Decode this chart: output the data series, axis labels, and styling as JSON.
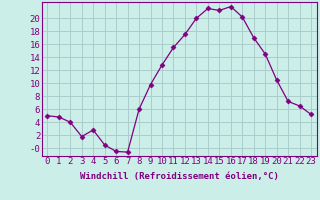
{
  "x": [
    0,
    1,
    2,
    3,
    4,
    5,
    6,
    7,
    8,
    9,
    10,
    11,
    12,
    13,
    14,
    15,
    16,
    17,
    18,
    19,
    20,
    21,
    22,
    23
  ],
  "y": [
    5.0,
    4.8,
    4.0,
    1.8,
    2.8,
    0.5,
    -0.5,
    -0.6,
    6.0,
    9.8,
    12.8,
    15.5,
    17.5,
    20.0,
    21.5,
    21.2,
    21.8,
    20.2,
    17.0,
    14.5,
    10.5,
    7.2,
    6.5,
    5.2
  ],
  "line_color": "#800080",
  "marker": "D",
  "marker_size": 2.5,
  "bg_color": "#cceee8",
  "grid_color": "#aacccc",
  "xlabel": "Windchill (Refroidissement éolien,°C)",
  "ylabel": "",
  "yticks": [
    0,
    2,
    4,
    6,
    8,
    10,
    12,
    14,
    16,
    18,
    20
  ],
  "ytick_labels": [
    "-0",
    "2",
    "4",
    "6",
    "8",
    "10",
    "12",
    "14",
    "16",
    "18",
    "20"
  ],
  "ylim": [
    -1.2,
    22.5
  ],
  "xlim": [
    -0.5,
    23.5
  ],
  "tick_color": "#800080",
  "label_color": "#800080",
  "font_size": 6.5
}
